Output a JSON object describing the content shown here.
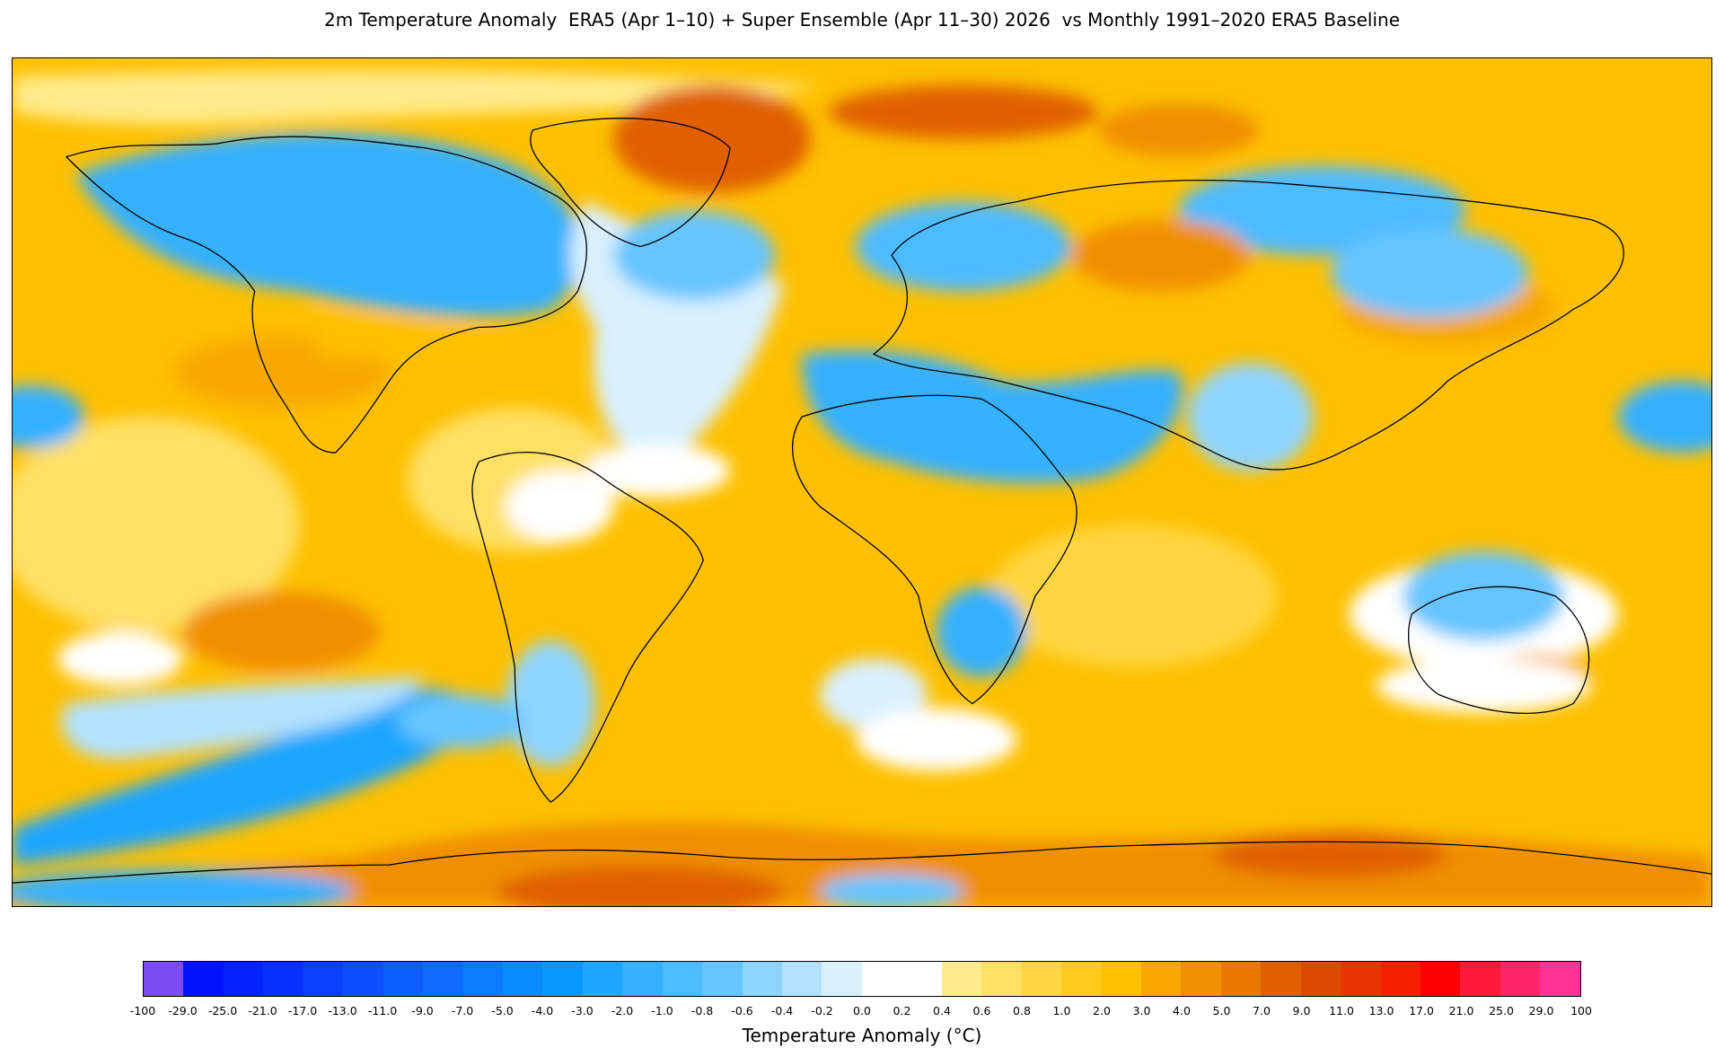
{
  "title": "2m Temperature Anomaly  ERA5 (Apr 1–10) + Super Ensemble (Apr 11–30) 2026  vs Monthly 1991–2020 ERA5 Baseline",
  "colorbar": {
    "label": "Temperature Anomaly (°C)",
    "ticks": [
      "-100",
      "-29.0",
      "-25.0",
      "-21.0",
      "-17.0",
      "-13.0",
      "-11.0",
      "-9.0",
      "-7.0",
      "-5.0",
      "-4.0",
      "-3.0",
      "-2.0",
      "-1.0",
      "-0.8",
      "-0.6",
      "-0.4",
      "-0.2",
      "0.0",
      "0.2",
      "0.4",
      "0.6",
      "0.8",
      "1.0",
      "2.0",
      "3.0",
      "4.0",
      "5.0",
      "7.0",
      "9.0",
      "11.0",
      "13.0",
      "17.0",
      "21.0",
      "25.0",
      "29.0",
      "100"
    ],
    "colors": [
      "#7b4cf5",
      "#0012ff",
      "#0421ff",
      "#0730ff",
      "#0a3fff",
      "#0d4eff",
      "#0e5dff",
      "#0d6cff",
      "#0b7bff",
      "#0a8aff",
      "#0998ff",
      "#1ea6ff",
      "#35b1ff",
      "#4dbbff",
      "#66c5ff",
      "#8dd4ff",
      "#b3e2ff",
      "#d9f0ff",
      "#ffffff",
      "#ffffff",
      "#ffeb8c",
      "#ffe066",
      "#ffd540",
      "#ffcb1f",
      "#ffc000",
      "#f7a800",
      "#f09000",
      "#e87800",
      "#e06000",
      "#dc4a00",
      "#e83500",
      "#f42000",
      "#ff0000",
      "#ff1a3c",
      "#ff2668",
      "#ff3399"
    ]
  },
  "map": {
    "projection": "Plate Carrée (global)",
    "land_color": "#fec000"
  }
}
